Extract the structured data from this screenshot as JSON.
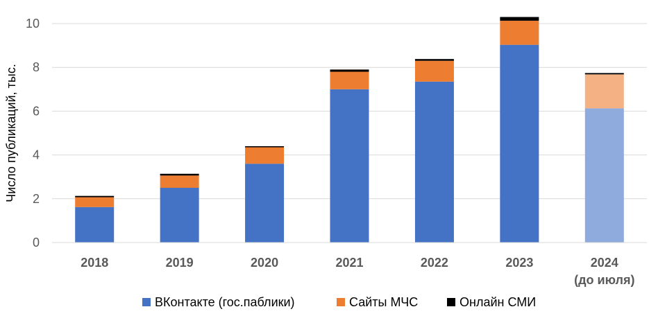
{
  "chart_data": {
    "type": "bar",
    "stacked": true,
    "categories": [
      [
        "2018"
      ],
      [
        "2019"
      ],
      [
        "2020"
      ],
      [
        "2021"
      ],
      [
        "2022"
      ],
      [
        "2023"
      ],
      [
        "2024",
        "(до июля)"
      ]
    ],
    "series": [
      {
        "name": "ВКонтакте (гос.паблики)",
        "values": [
          1.62,
          2.5,
          3.6,
          7.0,
          7.35,
          9.03,
          6.13
        ],
        "color": "#4472C4",
        "partial_color": "#8FAADC"
      },
      {
        "name": "Сайты МЧС",
        "values": [
          0.45,
          0.56,
          0.75,
          0.8,
          0.95,
          1.1,
          1.55
        ],
        "color": "#ED7D31",
        "partial_color": "#F4B183"
      },
      {
        "name": "Онлайн СМИ",
        "values": [
          0.06,
          0.08,
          0.05,
          0.1,
          0.08,
          0.17,
          0.06
        ],
        "color": "#000000",
        "partial_color": "#000000"
      }
    ],
    "partial_category_index": 6,
    "ylabel": "Число публикаций, тыс.",
    "xlabel": "",
    "ylim": [
      0,
      10
    ],
    "yticks": [
      0,
      2,
      4,
      6,
      8,
      10
    ],
    "grid": true,
    "legend_position": "bottom"
  }
}
